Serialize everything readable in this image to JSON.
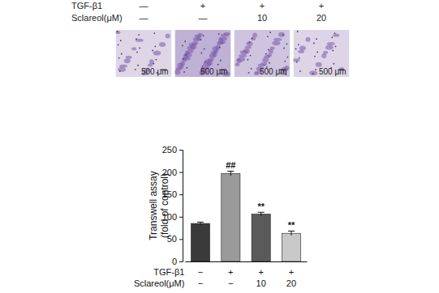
{
  "chart_data": {
    "type": "bar",
    "categories": [
      null,
      null,
      null,
      null
    ],
    "values": [
      85,
      197,
      106,
      63
    ],
    "errors": [
      3,
      5,
      4,
      5
    ],
    "annotations": [
      null,
      "##",
      "**",
      "**"
    ],
    "colors": [
      "#3a3a3a",
      "#9a9a9a",
      "#5a5a5a",
      "#c8c8c8"
    ],
    "ylabel": [
      "Transwell assay",
      "(fold of control)"
    ],
    "ylim": [
      0,
      250
    ],
    "yticks": [
      0,
      50,
      100,
      150,
      200,
      250
    ],
    "x_table": {
      "rows": [
        {
          "label": "TGF-β1",
          "values": [
            "−",
            "+",
            "+",
            "+"
          ]
        },
        {
          "label": "Sclareol(μM)",
          "values": [
            "−",
            "−",
            "10",
            "20"
          ]
        }
      ]
    }
  },
  "header": {
    "rows": [
      {
        "label": "TGF-β1",
        "values": [
          "—",
          "+",
          "+",
          "+"
        ]
      },
      {
        "label": "Sclareol(μM)",
        "values": [
          "—",
          "—",
          "10",
          "20"
        ]
      }
    ]
  },
  "panels": {
    "scale_bar_labels": [
      "500 μm",
      "500 μm",
      "500 μm",
      "500 μm"
    ]
  }
}
